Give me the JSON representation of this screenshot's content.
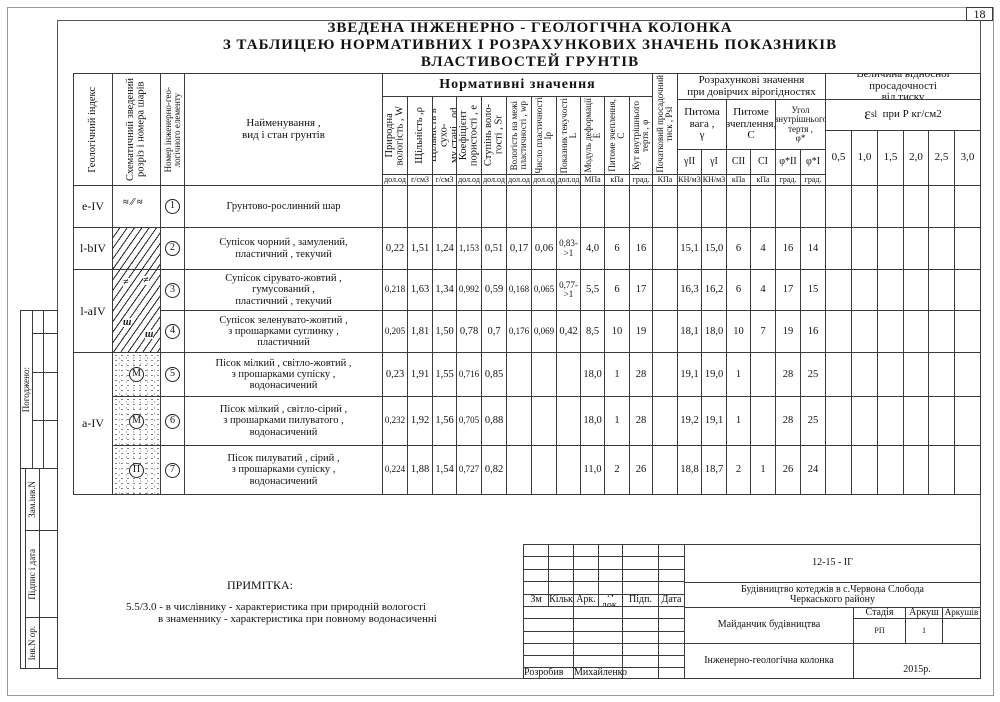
{
  "page_number": "18",
  "title": [
    "ЗВЕДЕНА  ІНЖЕНЕРНО - ГЕОЛОГІЧНА   КОЛОНКА",
    "З  ТАБЛИЦЕЮ НОРМАТИВНИХ  І  РОЗРАХУНКОВИХ ЗНАЧЕНЬ ПОКАЗНИКІВ",
    "ВЛАСТИВОСТЕЙ ГРУНТІВ"
  ],
  "table": {
    "headers": {
      "geo_index": "Геологічний індекс",
      "scheme": "Схематичний зведений\nрозріз  і номера шарів",
      "ige_number": "Номер інженерно-гео-\nлогічного елементу",
      "name": "Найменування ,\nвид і стан грунтів",
      "normative_title": "Нормативні   значення",
      "normative": [
        "Природна\nвологість , W",
        "Щільність ,ρ",
        "Щільність в сухо-\nму стані , ρd",
        "Коефіцієнт\nпористості , е",
        "Ступінь воло-\nгості , Sr",
        "Вологість на межі\nпластичності , wp",
        "Число пластичності\nIp",
        "Показник текучості\nL",
        "Модуль деформації\nE",
        "Питоме зчеплення,\nC",
        "Кут внутрішнього\nтертя , φ"
      ],
      "psl": "Початковий просадочний\nтиск , Psl",
      "calculated_title": "Розрахункові  значення\nпри довірчих вірогідностях",
      "calc_groups": [
        "Питома\nвага ,\nγ",
        "Питоме\nзчеплення,\nC",
        "Угол\nвнутрішнього\nтертя ,\nφ*"
      ],
      "calc_sub": [
        "γII",
        "γI",
        "CII",
        "CI",
        "φ*II",
        "φ*I"
      ],
      "sag_title": "Величина відносної просадочності\nвід тиску",
      "sag_symbol": "ε",
      "sag_symbol_sub": "sl",
      "sag_unit": "при Р кг/см2",
      "sag_pressures": [
        "0,5",
        "1,0",
        "1,5",
        "2,0",
        "2,5",
        "3,0"
      ]
    },
    "units": [
      "дол.од",
      "г/см3",
      "г/см3",
      "дол.од",
      "дол.од",
      "дол.од",
      "дол.од",
      "дол.од",
      "МПа",
      "кПа",
      "град.",
      "КПа",
      "КН/м3",
      "КН/м3",
      "кПа",
      "кПа",
      "град.",
      "град."
    ],
    "geo_groups": [
      "e-IV",
      "l-bIV",
      "l-aIV",
      "a-IV"
    ],
    "layers": [
      {
        "number": "1",
        "name": "Грунтово-рослинний шар",
        "scheme_mark": "",
        "values": [
          "",
          "",
          "",
          "",
          "",
          "",
          "",
          "",
          "",
          "",
          "",
          "",
          "",
          "",
          "",
          "",
          "",
          ""
        ]
      },
      {
        "number": "2",
        "name": "Супісок чорний , замулений,\nпластичний , текучий",
        "scheme_mark": "",
        "values": [
          "0,22",
          "1,51",
          "1,24",
          "1,153",
          "0,51",
          "0,17",
          "0,06",
          "0,83-\n>1",
          "4,0",
          "6",
          "16",
          "",
          "15,1",
          "15,0",
          "6",
          "4",
          "16",
          "14"
        ]
      },
      {
        "number": "3",
        "name": "Супісок сірувато-жовтий ,\nгумусований ,\nпластичний , текучий",
        "scheme_mark": "",
        "values": [
          "0,218",
          "1,63",
          "1,34",
          "0,992",
          "0,59",
          "0,168",
          "0,065",
          "0,77-\n>1",
          "5,5",
          "6",
          "17",
          "",
          "16,3",
          "16,2",
          "6",
          "4",
          "17",
          "15"
        ]
      },
      {
        "number": "4",
        "name": "Супісок зеленувато-жовтий ,\nз прошарками суглинку ,\nпластичний",
        "scheme_mark": "",
        "values": [
          "0,205",
          "1,81",
          "1,50",
          "0,78",
          "0,7",
          "0,176",
          "0,069",
          "0,42",
          "8,5",
          "10",
          "19",
          "",
          "18,1",
          "18,0",
          "10",
          "7",
          "19",
          "16"
        ]
      },
      {
        "number": "5",
        "name": "Пісок мілкий , світло-жовтий ,\nз прошарками супіску ,\nводонасичений",
        "scheme_mark": "М",
        "values": [
          "0,23",
          "1,91",
          "1,55",
          "0,716",
          "0,85",
          "",
          "",
          "",
          "18,0",
          "1",
          "28",
          "",
          "19,1",
          "19,0",
          "1",
          "",
          "28",
          "25"
        ]
      },
      {
        "number": "6",
        "name": "Пісок мілкий , світло-сірий ,\nз прошарками пилуватого ,\nводонасичений",
        "scheme_mark": "М",
        "values": [
          "0,232",
          "1,92",
          "1,56",
          "0,705",
          "0,88",
          "",
          "",
          "",
          "18,0",
          "1",
          "28",
          "",
          "19,2",
          "19,1",
          "1",
          "",
          "28",
          "25"
        ]
      },
      {
        "number": "7",
        "name": "Пісок пилуватий , сірий ,\nз прошарками супіску ,\nводонасичений",
        "scheme_mark": "П",
        "values": [
          "0,224",
          "1,88",
          "1,54",
          "0,727",
          "0,82",
          "",
          "",
          "",
          "11,0",
          "2",
          "26",
          "",
          "18,8",
          "18,7",
          "2",
          "1",
          "26",
          "24"
        ]
      }
    ]
  },
  "note": {
    "title": "ПРИМІТКА:",
    "line1": "5.5/3.0 - в числівнику - характеристика при природній вологості",
    "line2": "в знаменнику - характеристика при повному водонасиченні"
  },
  "stamp": {
    "columns": [
      "Зм",
      "Кільк",
      "Арк.",
      "N док.",
      "Підп.",
      "Дата"
    ],
    "developer_label": "Розробив",
    "developer_name": "Михайленко",
    "code": "12-15 - IГ",
    "project": "Будівництво котеджів в с.Червона Слобода\nЧеркаського району",
    "site": "Майданчик будівництва",
    "stage_label": "Стадія",
    "sheet_label": "Аркуш",
    "sheets_label": "Аркушів",
    "stage": "РП",
    "sheet": "1",
    "sheets": "",
    "drawing": "Інженерно-геологічна колонка",
    "year": "2015р."
  },
  "binding_strip": {
    "agreed": "Погоджено:",
    "replaced_inv": "Зам.інв.N",
    "sign_date": "Підпис і дата",
    "inv_orig": "Інв.N ор."
  }
}
